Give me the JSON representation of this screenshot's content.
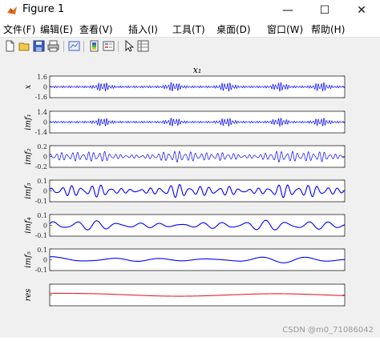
{
  "window": {
    "title": "Figure 1",
    "minimize": "—",
    "maximize": "☐",
    "close": "✕"
  },
  "menu": [
    "文件(F)",
    "编辑(E)",
    "查看(V)",
    "插入(I)",
    "工具(T)",
    "桌面(D)",
    "窗口(W)",
    "帮助(H)"
  ],
  "toolbar": [
    "new-figure-icon",
    "open-file-icon",
    "save-icon",
    "print-icon",
    "link-plot-icon",
    "insert-colorbar-icon",
    "insert-legend-icon",
    "pointer-icon",
    "property-inspector-icon"
  ],
  "colors": {
    "signal": "#0000ff",
    "residual": "#e8202c",
    "figure_bg": "#f0f0f0"
  },
  "watermark": "CSDN @m0_71086042",
  "chart_data": [
    {
      "type": "line",
      "title": "x₁",
      "ylabel": "x",
      "ticks": [
        "1.6",
        "0",
        "-1.6"
      ],
      "ylim": [
        -1.6,
        1.6
      ],
      "envelope": "bursty",
      "amplitude": 0.45,
      "frequency": 110,
      "color": "#0000ff",
      "grid": false
    },
    {
      "type": "line",
      "title": "",
      "ylabel": "imf₁",
      "ticks": [
        "1.4",
        "0",
        "-1.4"
      ],
      "ylim": [
        -1.4,
        1.4
      ],
      "envelope": "bursty",
      "amplitude": 0.42,
      "frequency": 110,
      "color": "#0000ff",
      "grid": false
    },
    {
      "type": "line",
      "title": "",
      "ylabel": "imf₂",
      "ticks": [
        "0.2",
        "0",
        "-0.2"
      ],
      "ylim": [
        -0.2,
        0.2
      ],
      "envelope": "mild",
      "amplitude": 0.55,
      "frequency": 55,
      "color": "#0000ff",
      "grid": false
    },
    {
      "type": "line",
      "title": "",
      "ylabel": "imf₃",
      "ticks": [
        "0.1",
        "0",
        "-0.1"
      ],
      "ylim": [
        -0.1,
        0.1
      ],
      "envelope": "mild",
      "amplitude": 0.65,
      "frequency": 30,
      "color": "#0000ff",
      "grid": false
    },
    {
      "type": "line",
      "title": "",
      "ylabel": "imf₄",
      "ticks": [
        "0.1",
        "0",
        "-0.1"
      ],
      "ylim": [
        -0.1,
        0.1
      ],
      "envelope": "smooth",
      "amplitude": 0.5,
      "frequency": 14,
      "color": "#0000ff",
      "grid": false
    },
    {
      "type": "line",
      "title": "",
      "ylabel": "imf₅",
      "ticks": [
        "0.1",
        "0",
        "-0.1"
      ],
      "ylim": [
        -0.1,
        0.1
      ],
      "envelope": "smooth",
      "amplitude": 0.3,
      "frequency": 6,
      "color": "#0000ff",
      "grid": false
    },
    {
      "type": "line",
      "title": "",
      "ylabel": "res",
      "ticks": [],
      "ylim": [
        -0.1,
        0.1
      ],
      "envelope": "flat",
      "amplitude": 0.12,
      "frequency": 1.5,
      "color": "#e8202c",
      "grid": false
    }
  ]
}
